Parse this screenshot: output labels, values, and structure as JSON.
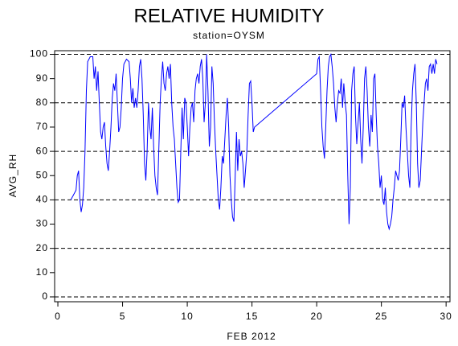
{
  "chart_data": {
    "type": "line",
    "title": "RELATIVE HUMIDITY",
    "subtitle": "station=OYSM",
    "xlabel": "FEB 2012",
    "ylabel": "AVG_RH",
    "xlim": [
      -0.25,
      30.3
    ],
    "ylim": [
      -2,
      101.5
    ],
    "xticks": [
      0,
      5,
      10,
      15,
      20,
      25,
      30
    ],
    "yticks": [
      0,
      10,
      20,
      30,
      40,
      50,
      60,
      70,
      80,
      90,
      100
    ],
    "grid": true,
    "grid_values": [
      0,
      20,
      40,
      60,
      80,
      100
    ],
    "series": [
      {
        "name": "AVG_RH",
        "color": "#0000ff",
        "x": [
          1.0,
          1.2,
          1.4,
          1.5,
          1.6,
          1.7,
          1.8,
          1.9,
          2.0,
          2.1,
          2.2,
          2.3,
          2.5,
          2.7,
          2.8,
          2.9,
          3.0,
          3.1,
          3.2,
          3.3,
          3.4,
          3.5,
          3.6,
          3.7,
          3.8,
          3.9,
          4.0,
          4.1,
          4.2,
          4.3,
          4.4,
          4.5,
          4.6,
          4.7,
          4.8,
          4.9,
          5.0,
          5.1,
          5.3,
          5.5,
          5.6,
          5.7,
          5.8,
          5.9,
          6.0,
          6.1,
          6.2,
          6.3,
          6.4,
          6.5,
          6.6,
          6.7,
          6.8,
          6.9,
          7.0,
          7.1,
          7.2,
          7.3,
          7.4,
          7.5,
          7.6,
          7.7,
          7.8,
          7.9,
          8.0,
          8.1,
          8.2,
          8.3,
          8.4,
          8.5,
          8.6,
          8.7,
          8.8,
          8.9,
          9.0,
          9.1,
          9.2,
          9.3,
          9.4,
          9.5,
          9.6,
          9.7,
          9.8,
          9.9,
          10.0,
          10.1,
          10.2,
          10.3,
          10.4,
          10.5,
          10.6,
          10.7,
          10.8,
          10.9,
          11.0,
          11.1,
          11.2,
          11.3,
          11.4,
          11.5,
          11.6,
          11.7,
          11.8,
          11.9,
          12.0,
          12.1,
          12.2,
          12.3,
          12.4,
          12.5,
          12.6,
          12.7,
          12.8,
          12.9,
          13.0,
          13.1,
          13.2,
          13.3,
          13.4,
          13.5,
          13.6,
          13.7,
          13.8,
          13.9,
          14.0,
          14.1,
          14.2,
          14.3,
          14.4,
          14.5,
          14.6,
          14.7,
          14.8,
          14.9,
          15.0,
          15.1,
          15.2,
          20.0,
          20.1,
          20.2,
          20.3,
          20.4,
          20.5,
          20.6,
          20.7,
          20.8,
          20.9,
          21.0,
          21.1,
          21.2,
          21.3,
          21.4,
          21.5,
          21.6,
          21.7,
          21.8,
          21.9,
          22.0,
          22.1,
          22.2,
          22.3,
          22.4,
          22.5,
          22.6,
          22.7,
          22.8,
          22.9,
          23.0,
          23.1,
          23.2,
          23.3,
          23.4,
          23.5,
          23.6,
          23.7,
          23.8,
          23.9,
          24.0,
          24.1,
          24.2,
          24.3,
          24.4,
          24.5,
          24.6,
          24.7,
          24.8,
          24.9,
          25.0,
          25.1,
          25.2,
          25.3,
          25.4,
          25.5,
          25.6,
          25.7,
          25.8,
          25.9,
          26.0,
          26.1,
          26.2,
          26.3,
          26.4,
          26.5,
          26.6,
          26.7,
          26.8,
          26.9,
          27.0,
          27.1,
          27.2,
          27.3,
          27.4,
          27.5,
          27.6,
          27.7,
          27.8,
          27.9,
          28.0,
          28.1,
          28.2,
          28.3,
          28.4,
          28.5,
          28.6,
          28.7,
          28.8,
          28.9,
          29.0,
          29.1,
          29.2,
          29.3
        ],
        "values": [
          40,
          42,
          44,
          50,
          52,
          40,
          35,
          38,
          45,
          60,
          85,
          97,
          99,
          99,
          90,
          95,
          85,
          93,
          80,
          68,
          65,
          70,
          72,
          62,
          55,
          52,
          60,
          70,
          82,
          88,
          85,
          92,
          80,
          68,
          70,
          78,
          90,
          96,
          98,
          97,
          90,
          80,
          86,
          78,
          82,
          78,
          85,
          95,
          98,
          90,
          75,
          55,
          48,
          60,
          80,
          70,
          65,
          78,
          62,
          50,
          45,
          42,
          60,
          80,
          90,
          97,
          88,
          85,
          92,
          95,
          90,
          96,
          80,
          70,
          65,
          55,
          45,
          39,
          40,
          60,
          78,
          65,
          82,
          80,
          70,
          58,
          70,
          78,
          80,
          72,
          85,
          90,
          92,
          88,
          95,
          98,
          90,
          72,
          80,
          100,
          85,
          62,
          70,
          95,
          88,
          72,
          60,
          50,
          40,
          36,
          45,
          58,
          55,
          65,
          75,
          82,
          70,
          50,
          40,
          33,
          31,
          50,
          68,
          52,
          65,
          58,
          60,
          55,
          45,
          52,
          60,
          75,
          88,
          89,
          80,
          68,
          70,
          92,
          98,
          99,
          85,
          70,
          62,
          57,
          70,
          85,
          95,
          99,
          100,
          95,
          88,
          78,
          72,
          80,
          85,
          84,
          90,
          78,
          88,
          80,
          75,
          50,
          30,
          45,
          85,
          92,
          95,
          75,
          63,
          72,
          80,
          65,
          55,
          70,
          90,
          95,
          85,
          70,
          62,
          75,
          68,
          90,
          92,
          75,
          62,
          55,
          45,
          50,
          40,
          38,
          45,
          35,
          30,
          28,
          30,
          33,
          40,
          45,
          52,
          50,
          48,
          52,
          65,
          80,
          78,
          83,
          70,
          60,
          50,
          45,
          70,
          85,
          92,
          96,
          80,
          55,
          45,
          48,
          60,
          72,
          80,
          88,
          90,
          85,
          95,
          96,
          92,
          96,
          92,
          98,
          96
        ]
      }
    ]
  }
}
